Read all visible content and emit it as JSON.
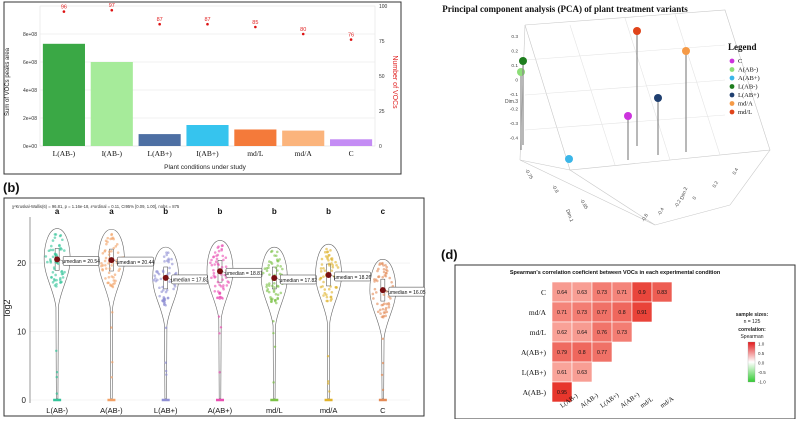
{
  "panel_a": {
    "chart_data": {
      "type": "bar",
      "xlabel": "Plant conditions under study",
      "ylabel": "Sum of VOCs peaks area",
      "ylabel_right": "Number of VOCs",
      "categories": [
        "L(AB-)",
        "I(AB-)",
        "L(AB+)",
        "I(AB+)",
        "md/L",
        "md/A",
        "C"
      ],
      "values": [
        730000000,
        600000000,
        85000000,
        150000000,
        118000000,
        110000000,
        48000000
      ],
      "colors": [
        "#3aa845",
        "#a6eb9a",
        "#4d6fa3",
        "#36c4ee",
        "#f47a3a",
        "#fbb47c",
        "#c48cf4"
      ],
      "counts": [
        96,
        97,
        87,
        87,
        85,
        80,
        76
      ],
      "ylim": [
        0,
        1000000000
      ],
      "yticks": [
        "0e+00",
        "2e+08",
        "4e+08",
        "6e+08",
        "8e+08"
      ],
      "y2lim": [
        0,
        100
      ],
      "y2ticks": [
        "0",
        "25",
        "50",
        "75",
        "100"
      ]
    }
  },
  "panel_pca": {
    "chart_data": {
      "type": "scatter",
      "title": "Principal component analysis (PCA) of plant treatment variants",
      "dim1_label": "Dim.1",
      "dim2_label": "Dim.2",
      "dim3_label": "Dim.3",
      "z_ticks": [
        "0.3",
        "0.2",
        "0.1",
        "0",
        "-0.1",
        "-0.2",
        "-0.3",
        "-0.4"
      ],
      "dim1_ticks": [
        "-0.75",
        "-0.8",
        "-0.85"
      ],
      "dim2_ticks": [
        "0.4",
        "0.2",
        "0",
        "-0.2",
        "-0.4",
        "-0.6"
      ],
      "legend_title": "Legend",
      "legend": [
        {
          "label": "C",
          "color": "#cc33dd"
        },
        {
          "label": "A(AB-)",
          "color": "#8cdd77"
        },
        {
          "label": "A(AB+)",
          "color": "#3bb6e8"
        },
        {
          "label": "L(AB-)",
          "color": "#1e7d1e"
        },
        {
          "label": "L(AB+)",
          "color": "#1f3f70"
        },
        {
          "label": "md/A",
          "color": "#f59a47"
        },
        {
          "label": "md/L",
          "color": "#e0441a"
        }
      ]
    }
  },
  "panel_b": {
    "label": "(b)",
    "stats_text": "χ²Kruskal-Wallis(6) = 96.81, p = 1.16e-18, ε²ordinal = 0.11, CI95% [0.09, 1.00], nobs = 875",
    "chart_data": {
      "type": "violin",
      "ylabel": "log2",
      "categories": [
        "L(AB-)",
        "A(AB-)",
        "L(AB+)",
        "A(AB+)",
        "md/L",
        "md/A",
        "C"
      ],
      "medians": [
        20.54,
        20.44,
        17.83,
        18.81,
        17.82,
        18.26,
        16.05
      ],
      "median_labels": [
        "μmedian = 20.54",
        "μmedian = 20.44",
        "μmedian = 17.83",
        "μmedian = 18.81",
        "μmedian = 17.82",
        "μmedian = 18.26",
        "μmedian = 16.05"
      ],
      "groups": [
        "a",
        "a",
        "b",
        "b",
        "b",
        "b",
        "c"
      ],
      "colors": [
        "#34c49a",
        "#f2a166",
        "#8f8fd4",
        "#e94fb2",
        "#7cc246",
        "#e0b22a",
        "#e38a56"
      ],
      "ylim": [
        0,
        26
      ],
      "yticks": [
        "0",
        "10",
        "20"
      ]
    }
  },
  "panel_d": {
    "label": "(d)",
    "chart_data": {
      "type": "heatmap",
      "title": "Spearman's correlation coeficient between VOCs in each experimental condition",
      "rows": [
        "C",
        "md/A",
        "md/L",
        "A(AB+)",
        "L(AB+)",
        "A(AB-)"
      ],
      "columns": [
        "L(AB-)",
        "A(AB-)",
        "L(AB+)",
        "A(AB+)",
        "md/L",
        "md/A"
      ],
      "values": [
        [
          0.64,
          0.63,
          0.73,
          0.71,
          0.9,
          0.83
        ],
        [
          0.71,
          0.73,
          0.77,
          0.8,
          0.91,
          null
        ],
        [
          0.62,
          0.64,
          0.76,
          0.73,
          null,
          null
        ],
        [
          0.79,
          0.8,
          0.77,
          null,
          null,
          null
        ],
        [
          0.61,
          0.63,
          null,
          null,
          null,
          null
        ],
        [
          0.95,
          null,
          null,
          null,
          null,
          null
        ]
      ],
      "value_labels": [
        [
          "0.64",
          "0.63",
          "0.73",
          "0.71",
          "0.9",
          "0.83"
        ],
        [
          "0.71",
          "0.73",
          "0.77",
          "0.8",
          "0.91",
          ""
        ],
        [
          "0.62",
          "0.64",
          "0.76",
          "0.73",
          "",
          ""
        ],
        [
          "0.79",
          "0.8",
          "0.77",
          "",
          "",
          ""
        ],
        [
          "0.61",
          "0.63",
          "",
          "",
          "",
          ""
        ],
        [
          "0.95",
          "",
          "",
          "",
          "",
          ""
        ]
      ],
      "legend_sample_title": "sample sizes:",
      "legend_sample_n": "n = 125",
      "legend_corr_title": "correlation:",
      "legend_corr_method": "Spearman",
      "legend_ticks": [
        "1.0",
        "0.5",
        "0.0",
        "-0.5",
        "-1.0"
      ]
    }
  }
}
